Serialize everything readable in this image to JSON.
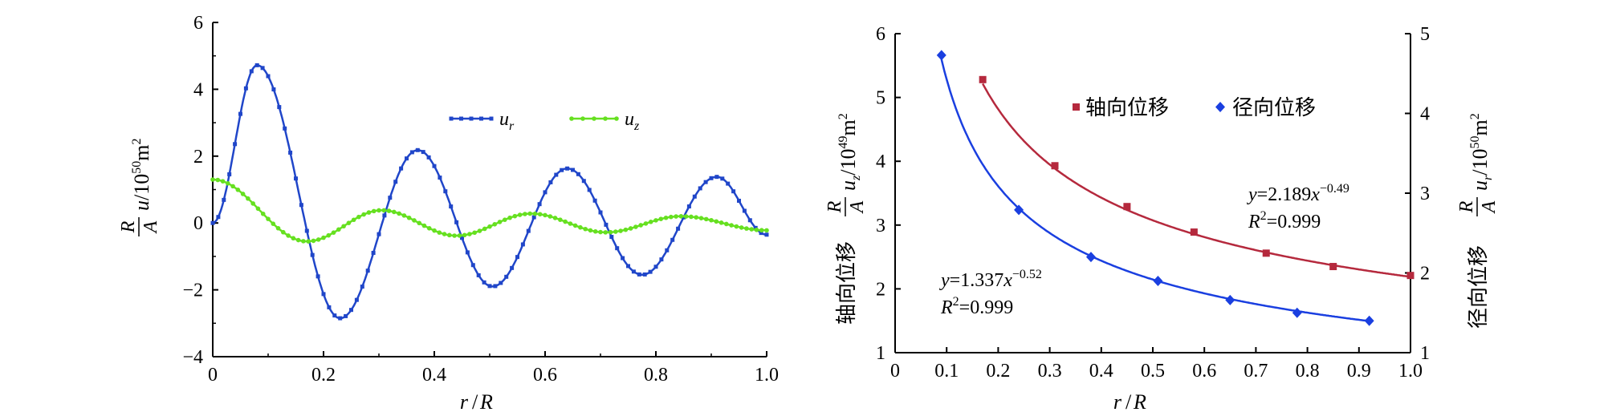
{
  "chart_data": [
    {
      "type": "line",
      "xlabel": "r/R",
      "ylabel": "R/A u/10^50 m^2",
      "xlim": [
        0,
        1.0
      ],
      "ylim": [
        -4,
        6
      ],
      "xticks": [
        "0",
        "0.2",
        "0.4",
        "0.6",
        "0.8",
        "1.0"
      ],
      "yticks": [
        "−4",
        "−2",
        "0",
        "2",
        "4",
        "6"
      ],
      "legend": "top-center",
      "grid": false,
      "series": [
        {
          "name": "u_r",
          "color": "#2046c9",
          "marker": "square",
          "description": "damped oscillation starting at 0",
          "extrema": [
            [
              0,
              0
            ],
            [
              0.08,
              4.72
            ],
            [
              0.23,
              -2.85
            ],
            [
              0.37,
              2.18
            ],
            [
              0.505,
              -1.9
            ],
            [
              0.64,
              1.63
            ],
            [
              0.775,
              -1.55
            ],
            [
              0.91,
              1.38
            ],
            [
              1.0,
              -0.35
            ]
          ]
        },
        {
          "name": "u_z",
          "color": "#66e020",
          "marker": "circle",
          "description": "small damped oscillation starting at 1.3",
          "extrema": [
            [
              0,
              1.3
            ],
            [
              0.17,
              -0.55
            ],
            [
              0.305,
              0.38
            ],
            [
              0.44,
              -0.38
            ],
            [
              0.575,
              0.28
            ],
            [
              0.71,
              -0.28
            ],
            [
              0.845,
              0.2
            ],
            [
              1.0,
              -0.22
            ]
          ]
        }
      ]
    },
    {
      "type": "scatter",
      "xlabel": "r/R",
      "ylabel_left": "轴向位移 R/A u_z/10^49 m^2",
      "ylabel_right": "径向位移 R/A u_r/10^50 m^2",
      "xlim": [
        0,
        1.0
      ],
      "ylim_left": [
        1,
        6
      ],
      "ylim_right": [
        1,
        5
      ],
      "xticks": [
        "0",
        "0.1",
        "0.2",
        "0.3",
        "0.4",
        "0.5",
        "0.6",
        "0.7",
        "0.8",
        "0.9",
        "1.0"
      ],
      "yticks_left": [
        "1",
        "2",
        "3",
        "4",
        "5",
        "6"
      ],
      "yticks_right": [
        "1",
        "2",
        "3",
        "4",
        "5"
      ],
      "legend": "top-center",
      "series": [
        {
          "name": "轴向位移",
          "axis": "left",
          "color": "#b5293d",
          "marker": "square",
          "x": [
            0.17,
            0.31,
            0.45,
            0.58,
            0.72,
            0.85,
            1.0
          ],
          "y": [
            5.28,
            3.93,
            3.29,
            2.89,
            2.56,
            2.35,
            2.21
          ],
          "fit": {
            "a": 2.189,
            "b": -0.49,
            "label1": "y=2.189x",
            "exp": "−0.49",
            "label2": "R",
            "label2b": "=0.999"
          }
        },
        {
          "name": "径向位移",
          "axis": "right",
          "color": "#1a3fe0",
          "marker": "diamond",
          "x": [
            0.09,
            0.24,
            0.38,
            0.51,
            0.65,
            0.78,
            0.92
          ],
          "y": [
            4.73,
            2.79,
            2.2,
            1.9,
            1.66,
            1.5,
            1.4
          ],
          "fit": {
            "a": 1.337,
            "b": -0.52,
            "label1": "y=1.337x",
            "exp": "−0.52",
            "label2": "R",
            "label2b": "=0.999"
          }
        }
      ]
    }
  ]
}
